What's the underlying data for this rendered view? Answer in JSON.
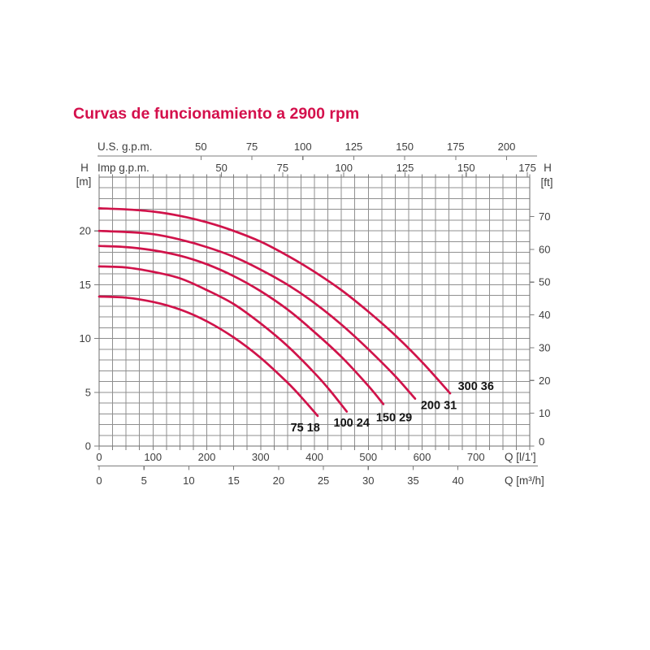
{
  "title": {
    "text": "Curvas de funcionamiento a 2900 rpm",
    "color": "#d4104c"
  },
  "axes": {
    "top_us": {
      "label": "U.S. g.p.m.",
      "ticks": [
        50,
        75,
        100,
        125,
        150,
        175,
        200
      ],
      "liters_per_unit": 3.785
    },
    "top_imp": {
      "label": "Imp g.p.m.",
      "ticks": [
        50,
        75,
        100,
        125,
        150,
        175
      ],
      "liters_per_unit": 4.546
    },
    "left": {
      "label": "H",
      "unit": "[m]",
      "ticks": [
        0,
        5,
        10,
        15,
        20
      ],
      "max": 25
    },
    "right": {
      "label": "H",
      "unit": "[ft]",
      "ticks": [
        0,
        10,
        20,
        30,
        40,
        50,
        60,
        70
      ],
      "meters_per_unit": 0.3048
    },
    "bottom_l": {
      "label": "Q [l/1']",
      "ticks": [
        0,
        100,
        200,
        300,
        400,
        500,
        600,
        700
      ],
      "max": 800
    },
    "bottom_m3h": {
      "label": "Q [m³/h]",
      "ticks": [
        0,
        5,
        10,
        15,
        20,
        25,
        30,
        35,
        40
      ],
      "liters_per_unit": 16.667
    }
  },
  "chart_data": {
    "type": "line",
    "title": "Curvas de funcionamiento a 2900 rpm",
    "xlabel": "Q [l/1']",
    "ylabel": "H [m]",
    "xlim": [
      0,
      800
    ],
    "ylim": [
      0,
      25
    ],
    "grid": {
      "on": true,
      "x_step": 25,
      "y_step": 1
    },
    "curve_color": "#d0134a",
    "series": [
      {
        "name": "75 18",
        "label_at": [
          383,
          1.75
        ],
        "points": [
          [
            0,
            13.9
          ],
          [
            50,
            13.8
          ],
          [
            100,
            13.4
          ],
          [
            150,
            12.7
          ],
          [
            200,
            11.6
          ],
          [
            250,
            10.1
          ],
          [
            300,
            8.2
          ],
          [
            350,
            5.9
          ],
          [
            380,
            4.3
          ],
          [
            406,
            2.8
          ]
        ]
      },
      {
        "name": "100 24",
        "label_at": [
          469,
          2.2
        ],
        "points": [
          [
            0,
            16.7
          ],
          [
            50,
            16.6
          ],
          [
            100,
            16.2
          ],
          [
            150,
            15.6
          ],
          [
            200,
            14.5
          ],
          [
            250,
            13.2
          ],
          [
            300,
            11.4
          ],
          [
            350,
            9.3
          ],
          [
            400,
            6.8
          ],
          [
            430,
            5.1
          ],
          [
            460,
            3.2
          ]
        ]
      },
      {
        "name": "150 29",
        "label_at": [
          548,
          2.7
        ],
        "points": [
          [
            0,
            18.6
          ],
          [
            50,
            18.5
          ],
          [
            100,
            18.2
          ],
          [
            150,
            17.7
          ],
          [
            200,
            16.9
          ],
          [
            250,
            15.8
          ],
          [
            300,
            14.4
          ],
          [
            350,
            12.7
          ],
          [
            400,
            10.6
          ],
          [
            450,
            8.3
          ],
          [
            500,
            5.6
          ],
          [
            528,
            3.9
          ]
        ]
      },
      {
        "name": "200 31",
        "label_at": [
          631,
          3.8
        ],
        "points": [
          [
            0,
            20.0
          ],
          [
            50,
            19.9
          ],
          [
            100,
            19.7
          ],
          [
            150,
            19.2
          ],
          [
            200,
            18.5
          ],
          [
            250,
            17.6
          ],
          [
            300,
            16.4
          ],
          [
            350,
            15.0
          ],
          [
            400,
            13.3
          ],
          [
            450,
            11.3
          ],
          [
            500,
            9.0
          ],
          [
            550,
            6.5
          ],
          [
            587,
            4.4
          ]
        ]
      },
      {
        "name": "300 36",
        "label_at": [
          700,
          5.6
        ],
        "points": [
          [
            0,
            22.1
          ],
          [
            50,
            22.0
          ],
          [
            100,
            21.8
          ],
          [
            150,
            21.4
          ],
          [
            200,
            20.8
          ],
          [
            250,
            20.0
          ],
          [
            300,
            19.0
          ],
          [
            350,
            17.7
          ],
          [
            400,
            16.2
          ],
          [
            450,
            14.5
          ],
          [
            500,
            12.5
          ],
          [
            550,
            10.3
          ],
          [
            600,
            7.8
          ],
          [
            652,
            4.9
          ]
        ]
      }
    ]
  },
  "style": {
    "grid_color": "#8f8f8f",
    "frame_color": "#6d6d6d",
    "axis_color": "#7d7d7d",
    "text_color": "#3e3e3e",
    "label_color": "#151515"
  }
}
